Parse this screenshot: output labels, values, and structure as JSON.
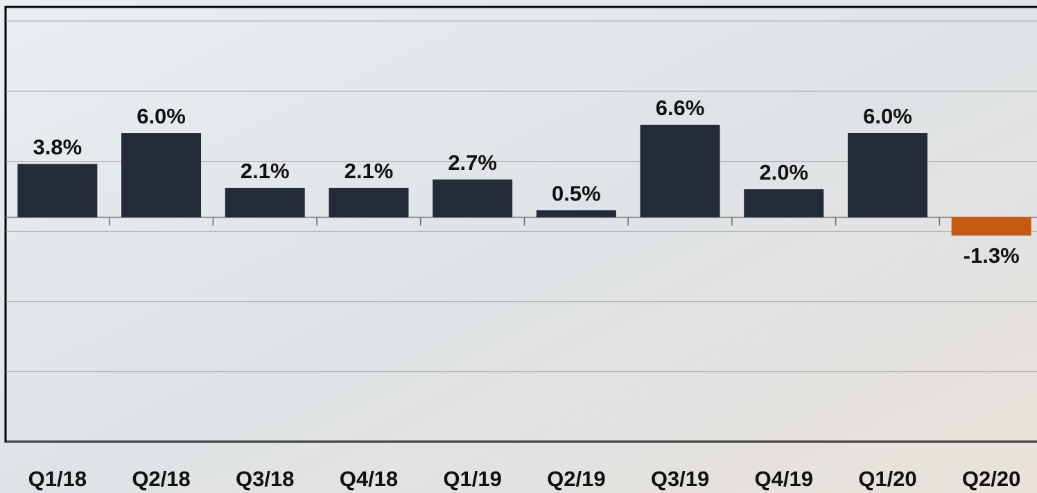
{
  "chart_data": {
    "type": "bar",
    "categories": [
      "Q1/18",
      "Q2/18",
      "Q3/18",
      "Q4/18",
      "Q1/19",
      "Q2/19",
      "Q3/19",
      "Q4/19",
      "Q1/20",
      "Q2/20"
    ],
    "values": [
      3.8,
      6.0,
      2.1,
      2.1,
      2.7,
      0.5,
      6.6,
      2.0,
      6.0,
      -1.3
    ],
    "value_labels": [
      "3.8%",
      "6.0%",
      "2.1%",
      "2.1%",
      "2.7%",
      "0.5%",
      "6.6%",
      "2.0%",
      "6.0%",
      "-1.3%"
    ],
    "color": "#232a38",
    "negative_color": "#c55a11",
    "ylim": [
      -16,
      15
    ],
    "yticks": [
      -16,
      -11,
      -6,
      -1,
      4,
      9,
      14
    ],
    "grid": true
  }
}
